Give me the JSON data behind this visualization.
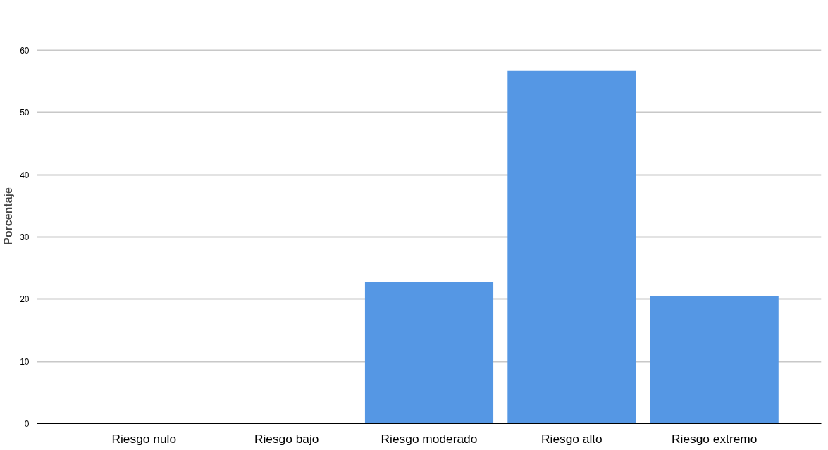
{
  "chart_data": {
    "type": "bar",
    "ylabel": "Porcentaje",
    "categories": [
      "Riesgo nulo",
      "Riesgo bajo",
      "Riesgo moderado",
      "Riesgo alto",
      "Riesgo extremo"
    ],
    "values": [
      0,
      0,
      22.8,
      56.7,
      20.5
    ],
    "color": "#5597e4",
    "ylim": [
      0,
      66.7
    ],
    "yticks": [
      0,
      10,
      20,
      30,
      40,
      50,
      60
    ],
    "grid": "y"
  }
}
